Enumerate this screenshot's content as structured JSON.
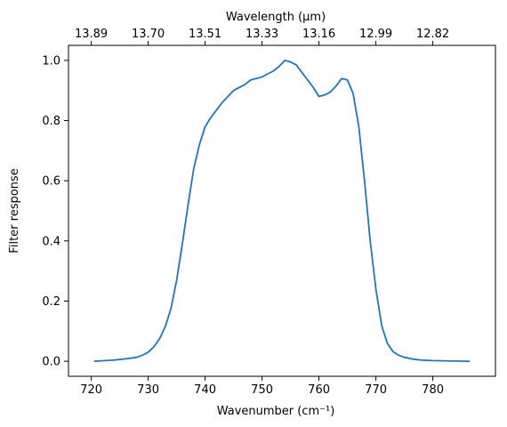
{
  "chart_data": {
    "type": "line",
    "title": "",
    "xlabel": "Wavenumber (cm⁻¹)",
    "ylabel": "Filter response",
    "x2label": "Wavelength (μm)",
    "xlim": [
      716,
      791
    ],
    "ylim": [
      -0.05,
      1.05
    ],
    "grid": false,
    "x_ticks": [
      720,
      730,
      740,
      750,
      760,
      770,
      780
    ],
    "x_tick_labels": [
      "720",
      "730",
      "740",
      "750",
      "760",
      "770",
      "780"
    ],
    "y_ticks": [
      0.0,
      0.2,
      0.4,
      0.6,
      0.8,
      1.0
    ],
    "y_tick_labels": [
      "0.0",
      "0.2",
      "0.4",
      "0.6",
      "0.8",
      "1.0"
    ],
    "top_ticks": [
      720,
      730,
      740,
      750,
      760,
      770,
      780
    ],
    "top_tick_labels": [
      "13.89",
      "13.70",
      "13.51",
      "13.33",
      "13.16",
      "12.99",
      "12.82"
    ],
    "color": "#1f77b4",
    "series": [
      {
        "x": [
          720.5,
          724,
          726,
          728,
          729,
          730,
          731,
          732,
          733,
          734,
          735,
          736,
          737,
          738,
          739,
          740,
          741,
          742,
          743,
          744,
          745,
          746,
          747,
          748,
          749,
          750,
          751,
          752,
          753,
          754,
          755,
          756,
          757,
          758,
          759,
          760,
          761,
          762,
          763,
          764,
          765,
          766,
          767,
          768,
          769,
          770,
          771,
          772,
          773,
          774,
          775,
          776,
          777,
          778,
          780,
          783,
          786.5
        ],
        "y": [
          0.0,
          0.004,
          0.008,
          0.013,
          0.02,
          0.03,
          0.048,
          0.075,
          0.115,
          0.175,
          0.27,
          0.39,
          0.52,
          0.64,
          0.72,
          0.78,
          0.81,
          0.835,
          0.86,
          0.88,
          0.9,
          0.91,
          0.92,
          0.935,
          0.94,
          0.945,
          0.955,
          0.965,
          0.98,
          1.0,
          0.995,
          0.985,
          0.96,
          0.935,
          0.91,
          0.88,
          0.885,
          0.895,
          0.915,
          0.94,
          0.935,
          0.89,
          0.78,
          0.6,
          0.4,
          0.24,
          0.12,
          0.06,
          0.032,
          0.02,
          0.013,
          0.009,
          0.006,
          0.004,
          0.002,
          0.001,
          0.0
        ]
      }
    ]
  }
}
